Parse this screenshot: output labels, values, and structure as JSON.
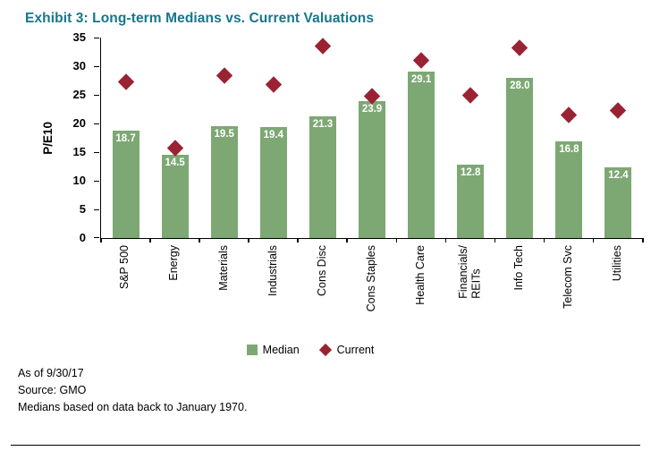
{
  "chart_data": {
    "type": "bar",
    "title": "Exhibit 3: Long-term Medians vs. Current Valuations",
    "ylabel": "P/E10",
    "ylim": [
      0,
      35
    ],
    "ytick_step": 5,
    "grid": false,
    "legend_position": "bottom",
    "categories": [
      "S&P 500",
      "Energy",
      "Materials",
      "Industrials",
      "Cons Disc",
      "Cons Staples",
      "Health Care",
      "Financials/\nREITs",
      "Info Tech",
      "Telecom Svc",
      "Utilities"
    ],
    "series": [
      {
        "name": "Median",
        "type": "bar",
        "color": "#7DA874",
        "values": [
          18.7,
          14.5,
          19.5,
          19.4,
          21.3,
          23.9,
          29.1,
          12.8,
          28.0,
          16.8,
          12.4
        ]
      },
      {
        "name": "Current",
        "type": "point",
        "marker": "diamond",
        "color": "#9A2333",
        "values": [
          27.2,
          15.7,
          28.3,
          26.8,
          33.5,
          24.7,
          31.0,
          25.0,
          33.2,
          21.5,
          22.2
        ]
      }
    ]
  },
  "colors": {
    "title": "#17768C",
    "axis": "#000000",
    "bar_label": "#FFFFFF"
  },
  "notes": [
    "As of 9/30/17",
    "Source: GMO",
    "Medians based on data back to January 1970."
  ]
}
